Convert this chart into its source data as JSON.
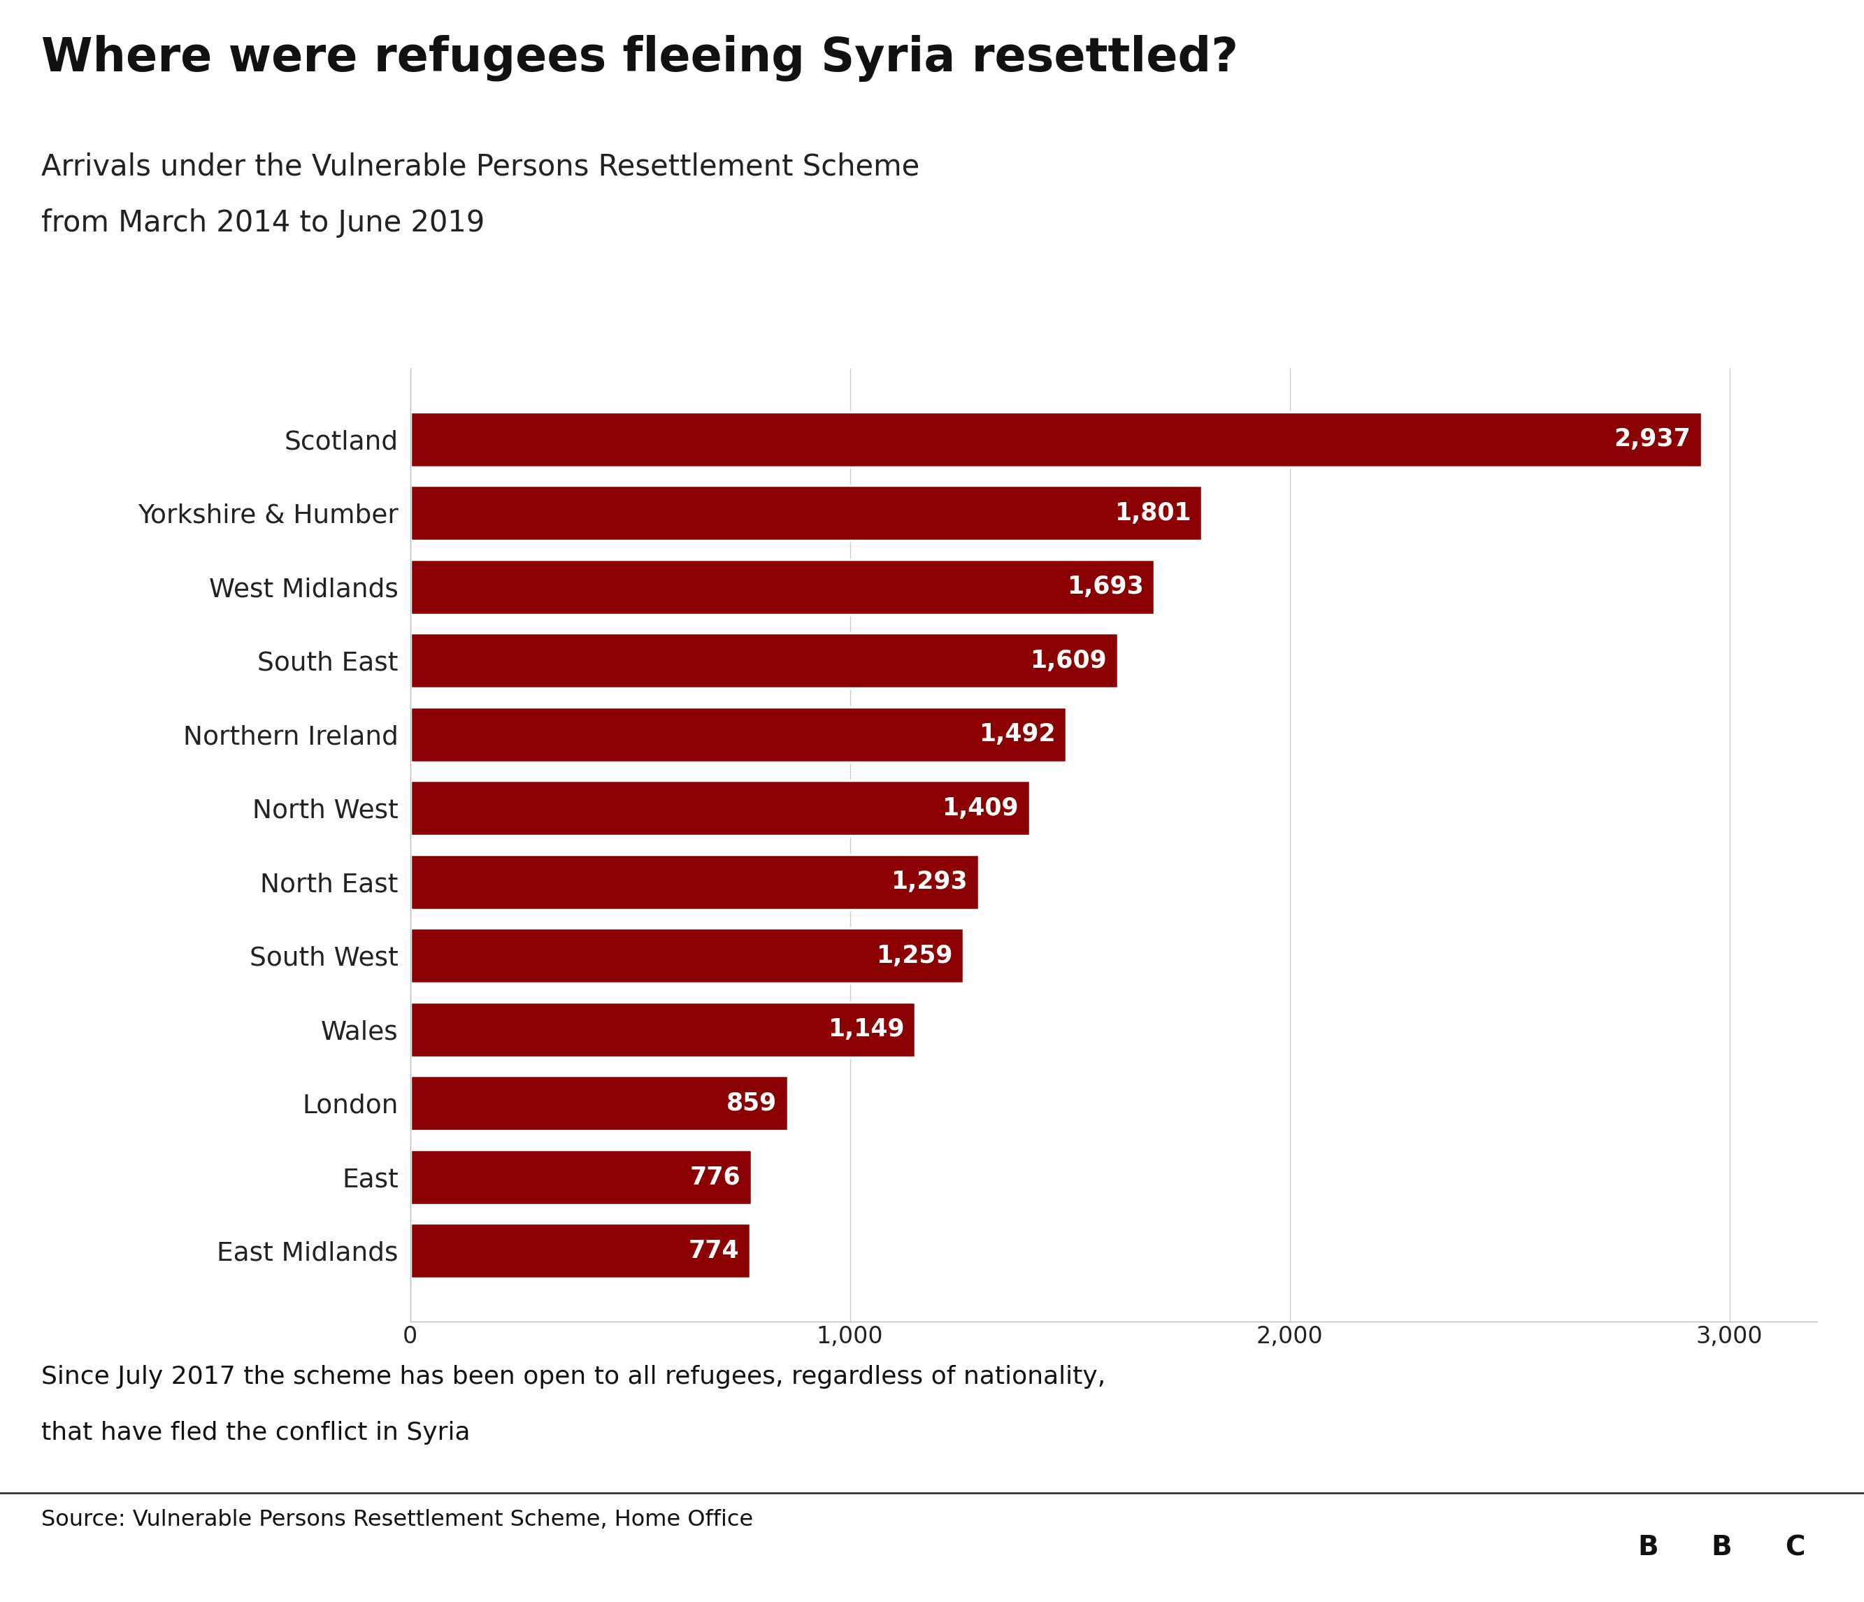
{
  "title": "Where were refugees fleeing Syria resettled?",
  "subtitle_line1": "Arrivals under the Vulnerable Persons Resettlement Scheme",
  "subtitle_line2": "from March 2014 to June 2019",
  "categories": [
    "Scotland",
    "Yorkshire & Humber",
    "West Midlands",
    "South East",
    "Northern Ireland",
    "North West",
    "North East",
    "South West",
    "Wales",
    "London",
    "East",
    "East Midlands"
  ],
  "values": [
    2937,
    1801,
    1693,
    1609,
    1492,
    1409,
    1293,
    1259,
    1149,
    859,
    776,
    774
  ],
  "bar_color": "#8B0000",
  "text_color_inside": "#FFFFFF",
  "label_color": "#222222",
  "bg_color": "#FFFFFF",
  "xlim": [
    0,
    3200
  ],
  "xticks": [
    0,
    1000,
    2000,
    3000
  ],
  "xtick_labels": [
    "0",
    "1,000",
    "2,000",
    "3,000"
  ],
  "footnote_line1": "Since July 2017 the scheme has been open to all refugees, regardless of nationality,",
  "footnote_line2": "that have fled the conflict in Syria",
  "source_text": "Source: Vulnerable Persons Resettlement Scheme, Home Office",
  "bbc_logo_color": "#6D6D6D",
  "title_fontsize": 48,
  "subtitle_fontsize": 30,
  "category_fontsize": 27,
  "value_fontsize": 25,
  "xtick_fontsize": 24,
  "footnote_fontsize": 26,
  "source_fontsize": 23
}
